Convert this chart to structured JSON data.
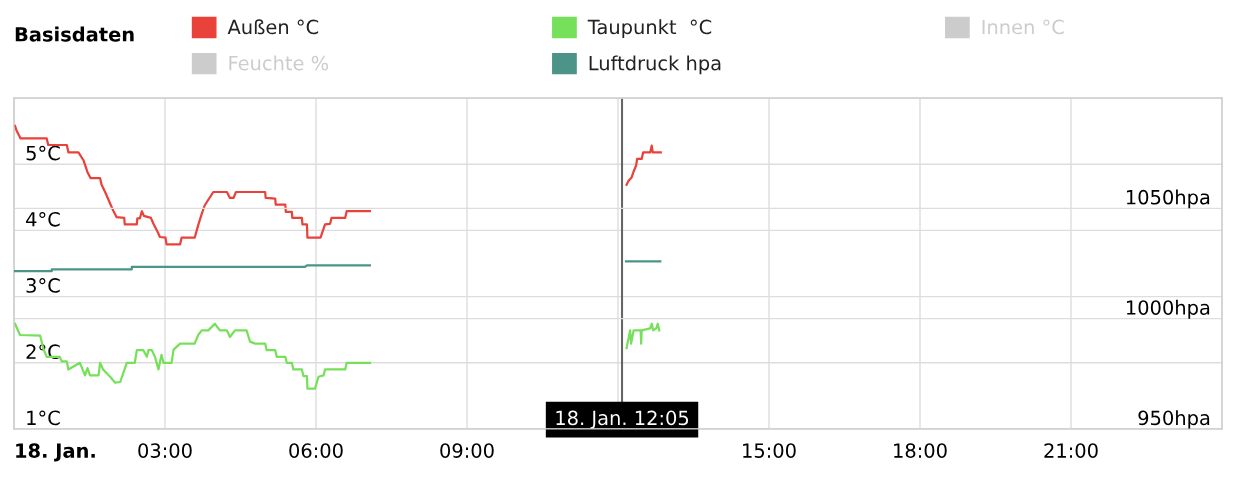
{
  "chart_data": {
    "type": "line",
    "legend_title": "Basisdaten",
    "legend": "top",
    "grid": true,
    "marker": "none",
    "line_style": "solid",
    "xlim": [
      0,
      24
    ],
    "xticks": [
      {
        "value": 0,
        "label": "18. Jan."
      },
      {
        "value": 3,
        "label": "03:00"
      },
      {
        "value": 6,
        "label": "06:00"
      },
      {
        "value": 9,
        "label": "09:00"
      },
      {
        "value": 12,
        "label": null
      },
      {
        "value": 15,
        "label": "15:00"
      },
      {
        "value": 18,
        "label": "18:00"
      },
      {
        "value": 21,
        "label": "21:00"
      }
    ],
    "ylim": [
      1,
      6
    ],
    "yticks": [
      {
        "value": 1,
        "label": "1°C"
      },
      {
        "value": 2,
        "label": "2°C"
      },
      {
        "value": 3,
        "label": "3°C"
      },
      {
        "value": 4,
        "label": "4°C"
      },
      {
        "value": 5,
        "label": "5°C"
      },
      {
        "value": 6,
        "label": null
      }
    ],
    "y2lim": [
      950,
      1100
    ],
    "y2ticks": [
      {
        "value": 950,
        "label": "950hpa"
      },
      {
        "value": 1000,
        "label": "1000hpa"
      },
      {
        "value": 1050,
        "label": "1050hpa"
      },
      {
        "value": 1100,
        "label": null
      }
    ],
    "ref_lines": [
      {
        "axis": "x",
        "value": 12.08,
        "label": "18. Jan. 12:05",
        "color": "#666666"
      }
    ],
    "series": [
      {
        "name": "Außen °C",
        "color": "#e8423a",
        "x": [
          0.02,
          0.05,
          0.13,
          0.65,
          0.68,
          1.05,
          1.08,
          1.28,
          1.38,
          1.46,
          1.52,
          1.71,
          1.74,
          1.81,
          1.97,
          2.04,
          2.19,
          2.2,
          2.44,
          2.45,
          2.5,
          2.54,
          2.58,
          2.72,
          2.77,
          2.84,
          2.9,
          3.01,
          3.03,
          3.3,
          3.33,
          3.59,
          3.66,
          3.73,
          3.79,
          3.96,
          4.23,
          4.29,
          4.36,
          4.41,
          4.99,
          5.0,
          5.19,
          5.2,
          5.39,
          5.4,
          5.52,
          5.53,
          5.72,
          5.73,
          5.82,
          5.83,
          6.09,
          6.18,
          6.28,
          6.31,
          6.58,
          6.61,
          7.07,
          9.6,
          12.17,
          12.21,
          12.27,
          12.31,
          12.36,
          12.38,
          12.47,
          12.5,
          12.64,
          12.67,
          12.69,
          12.85
        ],
        "values": [
          5.58,
          5.51,
          5.39,
          5.39,
          5.29,
          5.29,
          5.18,
          5.18,
          5.06,
          4.88,
          4.79,
          4.79,
          4.69,
          4.58,
          4.3,
          4.2,
          4.19,
          4.09,
          4.09,
          4.18,
          4.18,
          4.29,
          4.22,
          4.19,
          4.1,
          4.0,
          3.9,
          3.89,
          3.79,
          3.79,
          3.89,
          3.89,
          4.08,
          4.25,
          4.38,
          4.58,
          4.58,
          4.49,
          4.49,
          4.58,
          4.58,
          4.49,
          4.48,
          4.39,
          4.39,
          4.28,
          4.28,
          4.19,
          4.19,
          4.09,
          4.09,
          3.89,
          3.89,
          4.09,
          4.1,
          4.19,
          4.19,
          4.29,
          4.29,
          null,
          4.69,
          4.75,
          4.8,
          4.89,
          4.98,
          5.08,
          5.08,
          5.18,
          5.18,
          5.28,
          5.18,
          5.18
        ]
      },
      {
        "name": "Taupunkt  °C",
        "color": "#76e05a",
        "x": [
          0.02,
          0.12,
          0.52,
          0.58,
          0.65,
          0.91,
          0.95,
          1.05,
          1.08,
          1.31,
          1.41,
          1.46,
          1.51,
          1.68,
          1.71,
          1.77,
          1.91,
          2.01,
          2.11,
          2.24,
          2.4,
          2.44,
          2.57,
          2.64,
          2.67,
          2.74,
          2.8,
          2.87,
          2.93,
          2.97,
          3.13,
          3.17,
          3.3,
          3.59,
          3.66,
          3.73,
          3.86,
          3.99,
          4.09,
          4.23,
          4.29,
          4.39,
          4.62,
          4.69,
          4.79,
          4.99,
          5.02,
          5.19,
          5.22,
          5.39,
          5.42,
          5.52,
          5.55,
          5.72,
          5.75,
          5.82,
          5.83,
          5.98,
          6.05,
          6.15,
          6.18,
          6.58,
          6.61,
          7.07,
          9.6,
          12.17,
          12.24,
          12.26,
          12.31,
          12.45,
          12.46,
          12.47,
          12.64,
          12.67,
          12.7,
          12.76,
          12.79,
          12.82
        ],
        "values": [
          2.59,
          2.42,
          2.41,
          2.22,
          2.09,
          2.09,
          2.02,
          2.02,
          1.9,
          2.0,
          1.81,
          1.92,
          1.81,
          1.81,
          2.0,
          1.9,
          1.79,
          1.7,
          1.71,
          2.0,
          2.0,
          2.19,
          2.19,
          2.09,
          2.19,
          2.19,
          2.09,
          1.9,
          2.12,
          2.0,
          2.0,
          2.2,
          2.29,
          2.29,
          2.42,
          2.49,
          2.49,
          2.59,
          2.49,
          2.49,
          2.39,
          2.49,
          2.49,
          2.32,
          2.29,
          2.29,
          2.19,
          2.19,
          2.09,
          2.09,
          2.0,
          2.0,
          1.9,
          1.9,
          1.8,
          1.8,
          1.61,
          1.61,
          1.79,
          1.81,
          1.9,
          1.9,
          2.0,
          2.0,
          null,
          2.22,
          2.49,
          2.29,
          2.49,
          2.49,
          2.29,
          2.49,
          2.52,
          2.59,
          2.49,
          2.52,
          2.59,
          2.49
        ]
      },
      {
        "name": "Innen °C",
        "color": "#cccccc"
      },
      {
        "name": "Feuchte %",
        "color": "#cccccc"
      },
      {
        "name": "Luftdruck hpa",
        "color": "#4c9488",
        "axis": "y2",
        "x": [
          0.0,
          0.75,
          0.75,
          2.34,
          2.34,
          5.78,
          5.82,
          7.07,
          9.6,
          12.16,
          12.84
        ],
        "values": [
          1021.5,
          1021.5,
          1022.3,
          1022.3,
          1023.5,
          1023.5,
          1024.2,
          1024.2,
          null,
          1026.0,
          1026.0
        ]
      }
    ]
  }
}
